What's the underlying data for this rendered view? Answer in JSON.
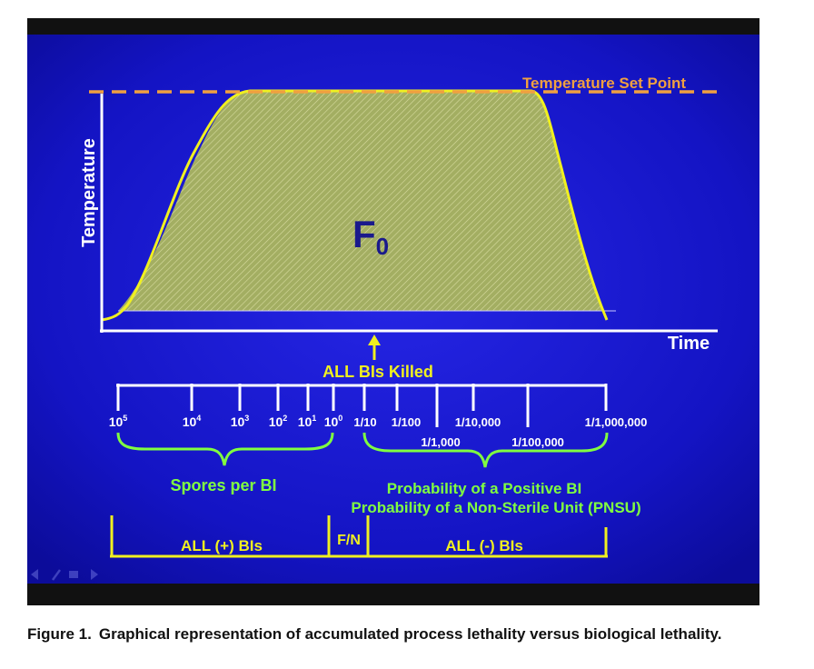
{
  "chart": {
    "setpoint_label": "Temperature Set Point",
    "y_axis_label": "Temperature",
    "x_axis_label": "Time",
    "area_label_main": "F",
    "area_label_sub": "0",
    "arrow_label": "ALL BIs Killed"
  },
  "scale": {
    "spore_ticks": [
      {
        "base": "10",
        "exp": "5"
      },
      {
        "base": "10",
        "exp": "4"
      },
      {
        "base": "10",
        "exp": "3"
      },
      {
        "base": "10",
        "exp": "2"
      },
      {
        "base": "10",
        "exp": "1"
      },
      {
        "base": "10",
        "exp": "0"
      }
    ],
    "probability_ticks_upper": [
      "1/10",
      "1/100",
      "1/10,000",
      "1/1,000,000"
    ],
    "probability_ticks_lower": [
      "1/1,000",
      "1/100,000"
    ],
    "spores_label": "Spores per BI",
    "probability_label_1": "Probability of a Positive BI",
    "probability_label_2": "Probability of a Non-Sterile Unit (PNSU)"
  },
  "zones": {
    "positive": "ALL (+) BIs",
    "fraction_negative": "F/N",
    "negative": "ALL (-) BIs"
  },
  "colors": {
    "background_dark": "#111111",
    "slide_blue": "#1010c8",
    "setpoint_orange": "#f0a040",
    "curve_yellow": "#f0f020",
    "area_green": "#a8b468",
    "brace_green": "#80ff40",
    "f0_text": "#1a1a8c",
    "text_white": "#ffffff"
  },
  "nav_icons": [
    "back-arrow-icon",
    "pen-icon",
    "menu-icon",
    "forward-arrow-icon"
  ],
  "caption": {
    "label": "Figure 1.",
    "text": "Graphical representation of accumulated process lethality versus biological lethality."
  }
}
